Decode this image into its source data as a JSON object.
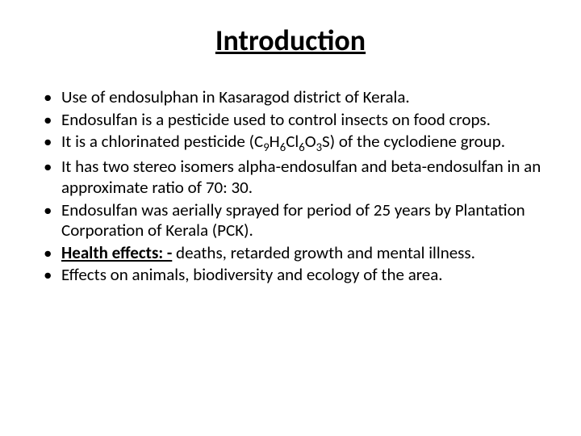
{
  "title": "Introduction",
  "bullets": [
    {
      "text": "Use of endosulphan in Kasaragod district of Kerala."
    },
    {
      "text": "Endosulfan is a pesticide used to control insects on food crops."
    },
    {
      "prefix": "It is a chlorinated pesticide (C",
      "formula_parts": [
        "9",
        "H",
        "6",
        "Cl",
        "6",
        "O",
        "3",
        "S"
      ],
      "suffix": ") of the cyclodiene group."
    },
    {
      "text": "It has two stereo isomers alpha-endosulfan and beta-endosulfan in an approximate ratio of 70: 30."
    },
    {
      "text": "Endosulfan was aerially sprayed for period of 25 years by Plantation Corporation of Kerala (PCK)."
    },
    {
      "label": "Health effects: -",
      "text": " deaths, retarded growth and mental illness."
    },
    {
      "text": "Effects on animals, biodiversity and ecology of the area."
    }
  ],
  "style": {
    "background_color": "#ffffff",
    "text_color": "#000000",
    "title_fontsize": 36,
    "body_fontsize": 21,
    "font_family": "Calibri"
  }
}
